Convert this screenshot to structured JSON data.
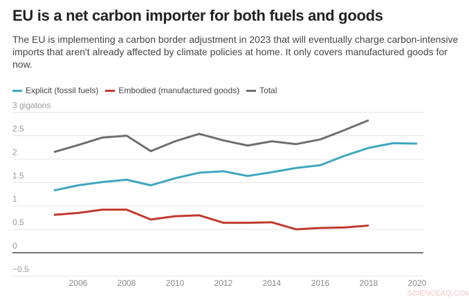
{
  "title": "EU is a net carbon importer for both fuels and goods",
  "subtitle": "The EU is implementing a carbon border adjustment in 2023 that will eventually charge carbon-intensive imports that aren't already affected by climate policies at home. It only covers manufactured goods for now.",
  "watermark": "SCIENCEAQ.COM",
  "chart_data": {
    "type": "line",
    "title": "EU is a net carbon importer for both fuels and goods",
    "ylim": [
      -0.5,
      3
    ],
    "xlim": [
      2004,
      2020
    ],
    "yticks": [
      {
        "v": 3,
        "label": "3 gigatons"
      },
      {
        "v": 2.5,
        "label": "2.5"
      },
      {
        "v": 2,
        "label": "2"
      },
      {
        "v": 1.5,
        "label": "1.5"
      },
      {
        "v": 1,
        "label": "1"
      },
      {
        "v": 0.5,
        "label": "0.5"
      },
      {
        "v": 0,
        "label": "0"
      },
      {
        "v": -0.5,
        "label": "−0.5"
      }
    ],
    "xticks": [
      "2006",
      "2008",
      "2010",
      "2012",
      "2014",
      "2016",
      "2018",
      "2020"
    ],
    "grid": true,
    "legend": "top-left",
    "series": [
      {
        "name": "Explicit (fossil fuels)",
        "color": "#3ea6bd",
        "x": [
          2005,
          2006,
          2007,
          2008,
          2009,
          2010,
          2011,
          2012,
          2013,
          2014,
          2015,
          2016,
          2017,
          2018,
          2019,
          2020
        ],
        "values": [
          1.33,
          1.44,
          1.51,
          1.56,
          1.44,
          1.59,
          1.71,
          1.74,
          1.64,
          1.72,
          1.81,
          1.87,
          2.07,
          2.24,
          2.34,
          2.33
        ]
      },
      {
        "name": "Embodied (manufactured goods)",
        "color": "#c0392b",
        "x": [
          2005,
          2006,
          2007,
          2008,
          2009,
          2010,
          2011,
          2012,
          2013,
          2014,
          2015,
          2016,
          2017,
          2018
        ],
        "values": [
          0.81,
          0.85,
          0.92,
          0.92,
          0.71,
          0.78,
          0.8,
          0.64,
          0.64,
          0.65,
          0.5,
          0.53,
          0.54,
          0.58
        ]
      },
      {
        "name": "Total",
        "color": "#6e6e72",
        "x": [
          2005,
          2006,
          2007,
          2008,
          2009,
          2010,
          2011,
          2012,
          2013,
          2014,
          2015,
          2016,
          2017,
          2018
        ],
        "values": [
          2.15,
          2.3,
          2.46,
          2.5,
          2.17,
          2.38,
          2.54,
          2.4,
          2.29,
          2.38,
          2.32,
          2.42,
          2.62,
          2.83
        ]
      }
    ]
  }
}
